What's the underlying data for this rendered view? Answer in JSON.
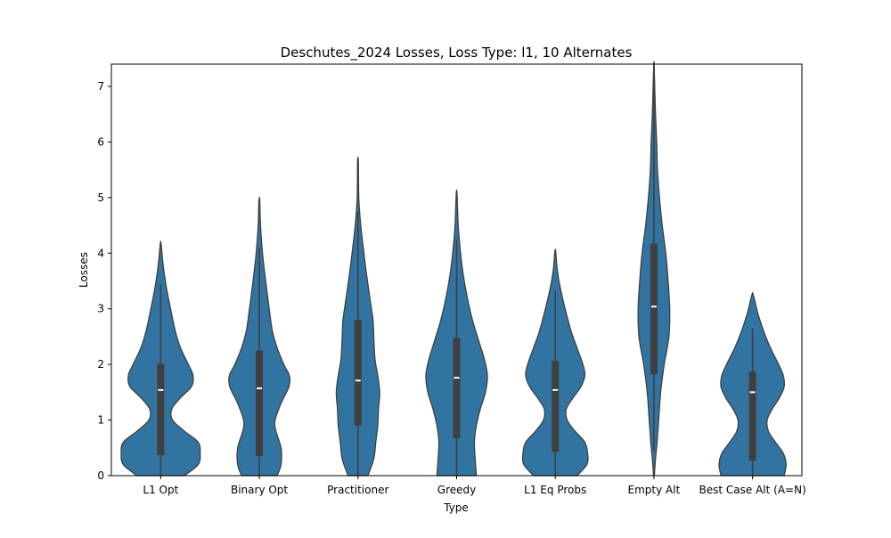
{
  "chart_data": {
    "type": "violin",
    "title": "Deschutes_2024 Losses, Loss Type: l1, 10 Alternates",
    "xlabel": "Type",
    "ylabel": "Losses",
    "ylim": [
      0,
      7.4
    ],
    "yticks": [
      0,
      1,
      2,
      3,
      4,
      5,
      6,
      7
    ],
    "grid": false,
    "color": "#3274a1",
    "edge_color": "#3f3f3f",
    "categories": [
      "L1 Opt",
      "Binary Opt",
      "Practitioner",
      "Greedy",
      "L1 Eq Probs",
      "Empty Alt",
      "Best Case Alt (A=N)"
    ],
    "series": [
      {
        "category": "L1 Opt",
        "whisker_low": 0,
        "q1": 0.37,
        "median": 1.54,
        "q3": 2.01,
        "whisker_high": 3.45,
        "density": [
          [
            0,
            0.6
          ],
          [
            0.2,
            0.95
          ],
          [
            0.4,
            1.0
          ],
          [
            0.6,
            0.95
          ],
          [
            0.8,
            0.6
          ],
          [
            1.0,
            0.3
          ],
          [
            1.2,
            0.28
          ],
          [
            1.4,
            0.5
          ],
          [
            1.6,
            0.78
          ],
          [
            1.8,
            0.82
          ],
          [
            2.0,
            0.7
          ],
          [
            2.3,
            0.5
          ],
          [
            2.6,
            0.37
          ],
          [
            3.0,
            0.25
          ],
          [
            3.4,
            0.14
          ],
          [
            3.8,
            0.06
          ],
          [
            4.17,
            0.01
          ]
        ]
      },
      {
        "category": "Binary Opt",
        "whisker_low": 0,
        "q1": 0.35,
        "median": 1.57,
        "q3": 2.25,
        "whisker_high": 4.1,
        "density": [
          [
            0,
            0.45
          ],
          [
            0.2,
            0.55
          ],
          [
            0.5,
            0.55
          ],
          [
            0.8,
            0.42
          ],
          [
            1.0,
            0.4
          ],
          [
            1.3,
            0.55
          ],
          [
            1.6,
            0.75
          ],
          [
            1.8,
            0.76
          ],
          [
            2.0,
            0.62
          ],
          [
            2.3,
            0.45
          ],
          [
            2.6,
            0.33
          ],
          [
            3.0,
            0.25
          ],
          [
            3.5,
            0.16
          ],
          [
            4.0,
            0.08
          ],
          [
            4.5,
            0.03
          ],
          [
            4.95,
            0.01
          ]
        ]
      },
      {
        "category": "Practitioner",
        "whisker_low": 0,
        "q1": 0.9,
        "median": 1.71,
        "q3": 2.8,
        "whisker_high": 4.75,
        "density": [
          [
            0,
            0.25
          ],
          [
            0.3,
            0.4
          ],
          [
            0.6,
            0.45
          ],
          [
            0.9,
            0.5
          ],
          [
            1.2,
            0.52
          ],
          [
            1.5,
            0.55
          ],
          [
            1.8,
            0.5
          ],
          [
            2.1,
            0.43
          ],
          [
            2.5,
            0.4
          ],
          [
            2.8,
            0.38
          ],
          [
            3.2,
            0.3
          ],
          [
            3.6,
            0.22
          ],
          [
            4.0,
            0.15
          ],
          [
            4.5,
            0.07
          ],
          [
            5.0,
            0.02
          ],
          [
            5.65,
            0.01
          ]
        ]
      },
      {
        "category": "Greedy",
        "whisker_low": 0,
        "q1": 0.67,
        "median": 1.76,
        "q3": 2.48,
        "whisker_high": 4.25,
        "density": [
          [
            0,
            0.5
          ],
          [
            0.3,
            0.47
          ],
          [
            0.6,
            0.45
          ],
          [
            0.9,
            0.5
          ],
          [
            1.2,
            0.6
          ],
          [
            1.5,
            0.73
          ],
          [
            1.8,
            0.78
          ],
          [
            2.1,
            0.7
          ],
          [
            2.4,
            0.57
          ],
          [
            2.8,
            0.4
          ],
          [
            3.2,
            0.27
          ],
          [
            3.6,
            0.17
          ],
          [
            4.0,
            0.1
          ],
          [
            4.5,
            0.04
          ],
          [
            5.07,
            0.01
          ]
        ]
      },
      {
        "category": "L1 Eq Probs",
        "whisker_low": 0,
        "q1": 0.43,
        "median": 1.54,
        "q3": 2.06,
        "whisker_high": 3.33,
        "density": [
          [
            0,
            0.55
          ],
          [
            0.2,
            0.8
          ],
          [
            0.4,
            0.82
          ],
          [
            0.6,
            0.75
          ],
          [
            0.8,
            0.5
          ],
          [
            1.0,
            0.3
          ],
          [
            1.2,
            0.28
          ],
          [
            1.4,
            0.45
          ],
          [
            1.6,
            0.65
          ],
          [
            1.8,
            0.75
          ],
          [
            2.0,
            0.7
          ],
          [
            2.3,
            0.55
          ],
          [
            2.6,
            0.4
          ],
          [
            3.0,
            0.25
          ],
          [
            3.4,
            0.12
          ],
          [
            3.7,
            0.05
          ],
          [
            4.03,
            0.01
          ]
        ]
      },
      {
        "category": "Empty Alt",
        "whisker_low": 0.45,
        "q1": 1.82,
        "median": 3.04,
        "q3": 4.17,
        "whisker_high": 7.4,
        "density": [
          [
            0,
            0.01
          ],
          [
            0.3,
            0.04
          ],
          [
            0.6,
            0.08
          ],
          [
            1.0,
            0.12
          ],
          [
            1.5,
            0.17
          ],
          [
            2.0,
            0.26
          ],
          [
            2.5,
            0.38
          ],
          [
            3.0,
            0.4
          ],
          [
            3.5,
            0.36
          ],
          [
            4.0,
            0.3
          ],
          [
            4.5,
            0.21
          ],
          [
            5.0,
            0.14
          ],
          [
            5.5,
            0.09
          ],
          [
            6.0,
            0.07
          ],
          [
            6.5,
            0.04
          ],
          [
            7.0,
            0.02
          ],
          [
            7.4,
            0.005
          ]
        ]
      },
      {
        "category": "Best Case Alt (A=N)",
        "whisker_low": 0,
        "q1": 0.27,
        "median": 1.5,
        "q3": 1.87,
        "whisker_high": 2.65,
        "density": [
          [
            0,
            0.8
          ],
          [
            0.2,
            0.85
          ],
          [
            0.4,
            0.78
          ],
          [
            0.6,
            0.58
          ],
          [
            0.8,
            0.4
          ],
          [
            1.0,
            0.37
          ],
          [
            1.2,
            0.5
          ],
          [
            1.4,
            0.68
          ],
          [
            1.6,
            0.8
          ],
          [
            1.8,
            0.78
          ],
          [
            2.0,
            0.66
          ],
          [
            2.3,
            0.45
          ],
          [
            2.6,
            0.28
          ],
          [
            2.9,
            0.14
          ],
          [
            3.1,
            0.07
          ],
          [
            3.27,
            0.01
          ]
        ]
      }
    ]
  }
}
